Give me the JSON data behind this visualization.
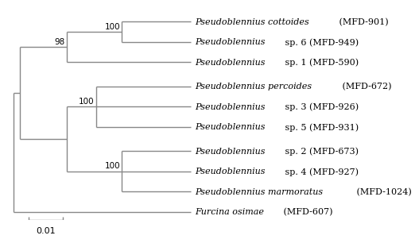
{
  "line_color": "#888888",
  "background_color": "#ffffff",
  "scale_bar_label": "0.01",
  "font_size": 8.0,
  "bootstrap_font_size": 7.5,
  "taxa": [
    [
      "Pseudoblennius cottoides",
      " (MFD-901)"
    ],
    [
      "Pseudoblennius",
      " sp. 6 (MFD-949)"
    ],
    [
      "Pseudoblennius",
      " sp. 1 (MFD-590)"
    ],
    [
      "Pseudoblennius percoides",
      " (MFD-672)"
    ],
    [
      "Pseudoblennius",
      " sp. 3 (MFD-926)"
    ],
    [
      "Pseudoblennius",
      " sp. 5 (MFD-931)"
    ],
    [
      "Pseudoblennius",
      " sp. 2 (MFD-673)"
    ],
    [
      "Pseudoblennius",
      " sp. 4 (MFD-927)"
    ],
    [
      "Pseudoblennius marmoratus",
      " (MFD-1024)"
    ],
    [
      "Furcina osimae",
      " (MFD-607)"
    ]
  ]
}
